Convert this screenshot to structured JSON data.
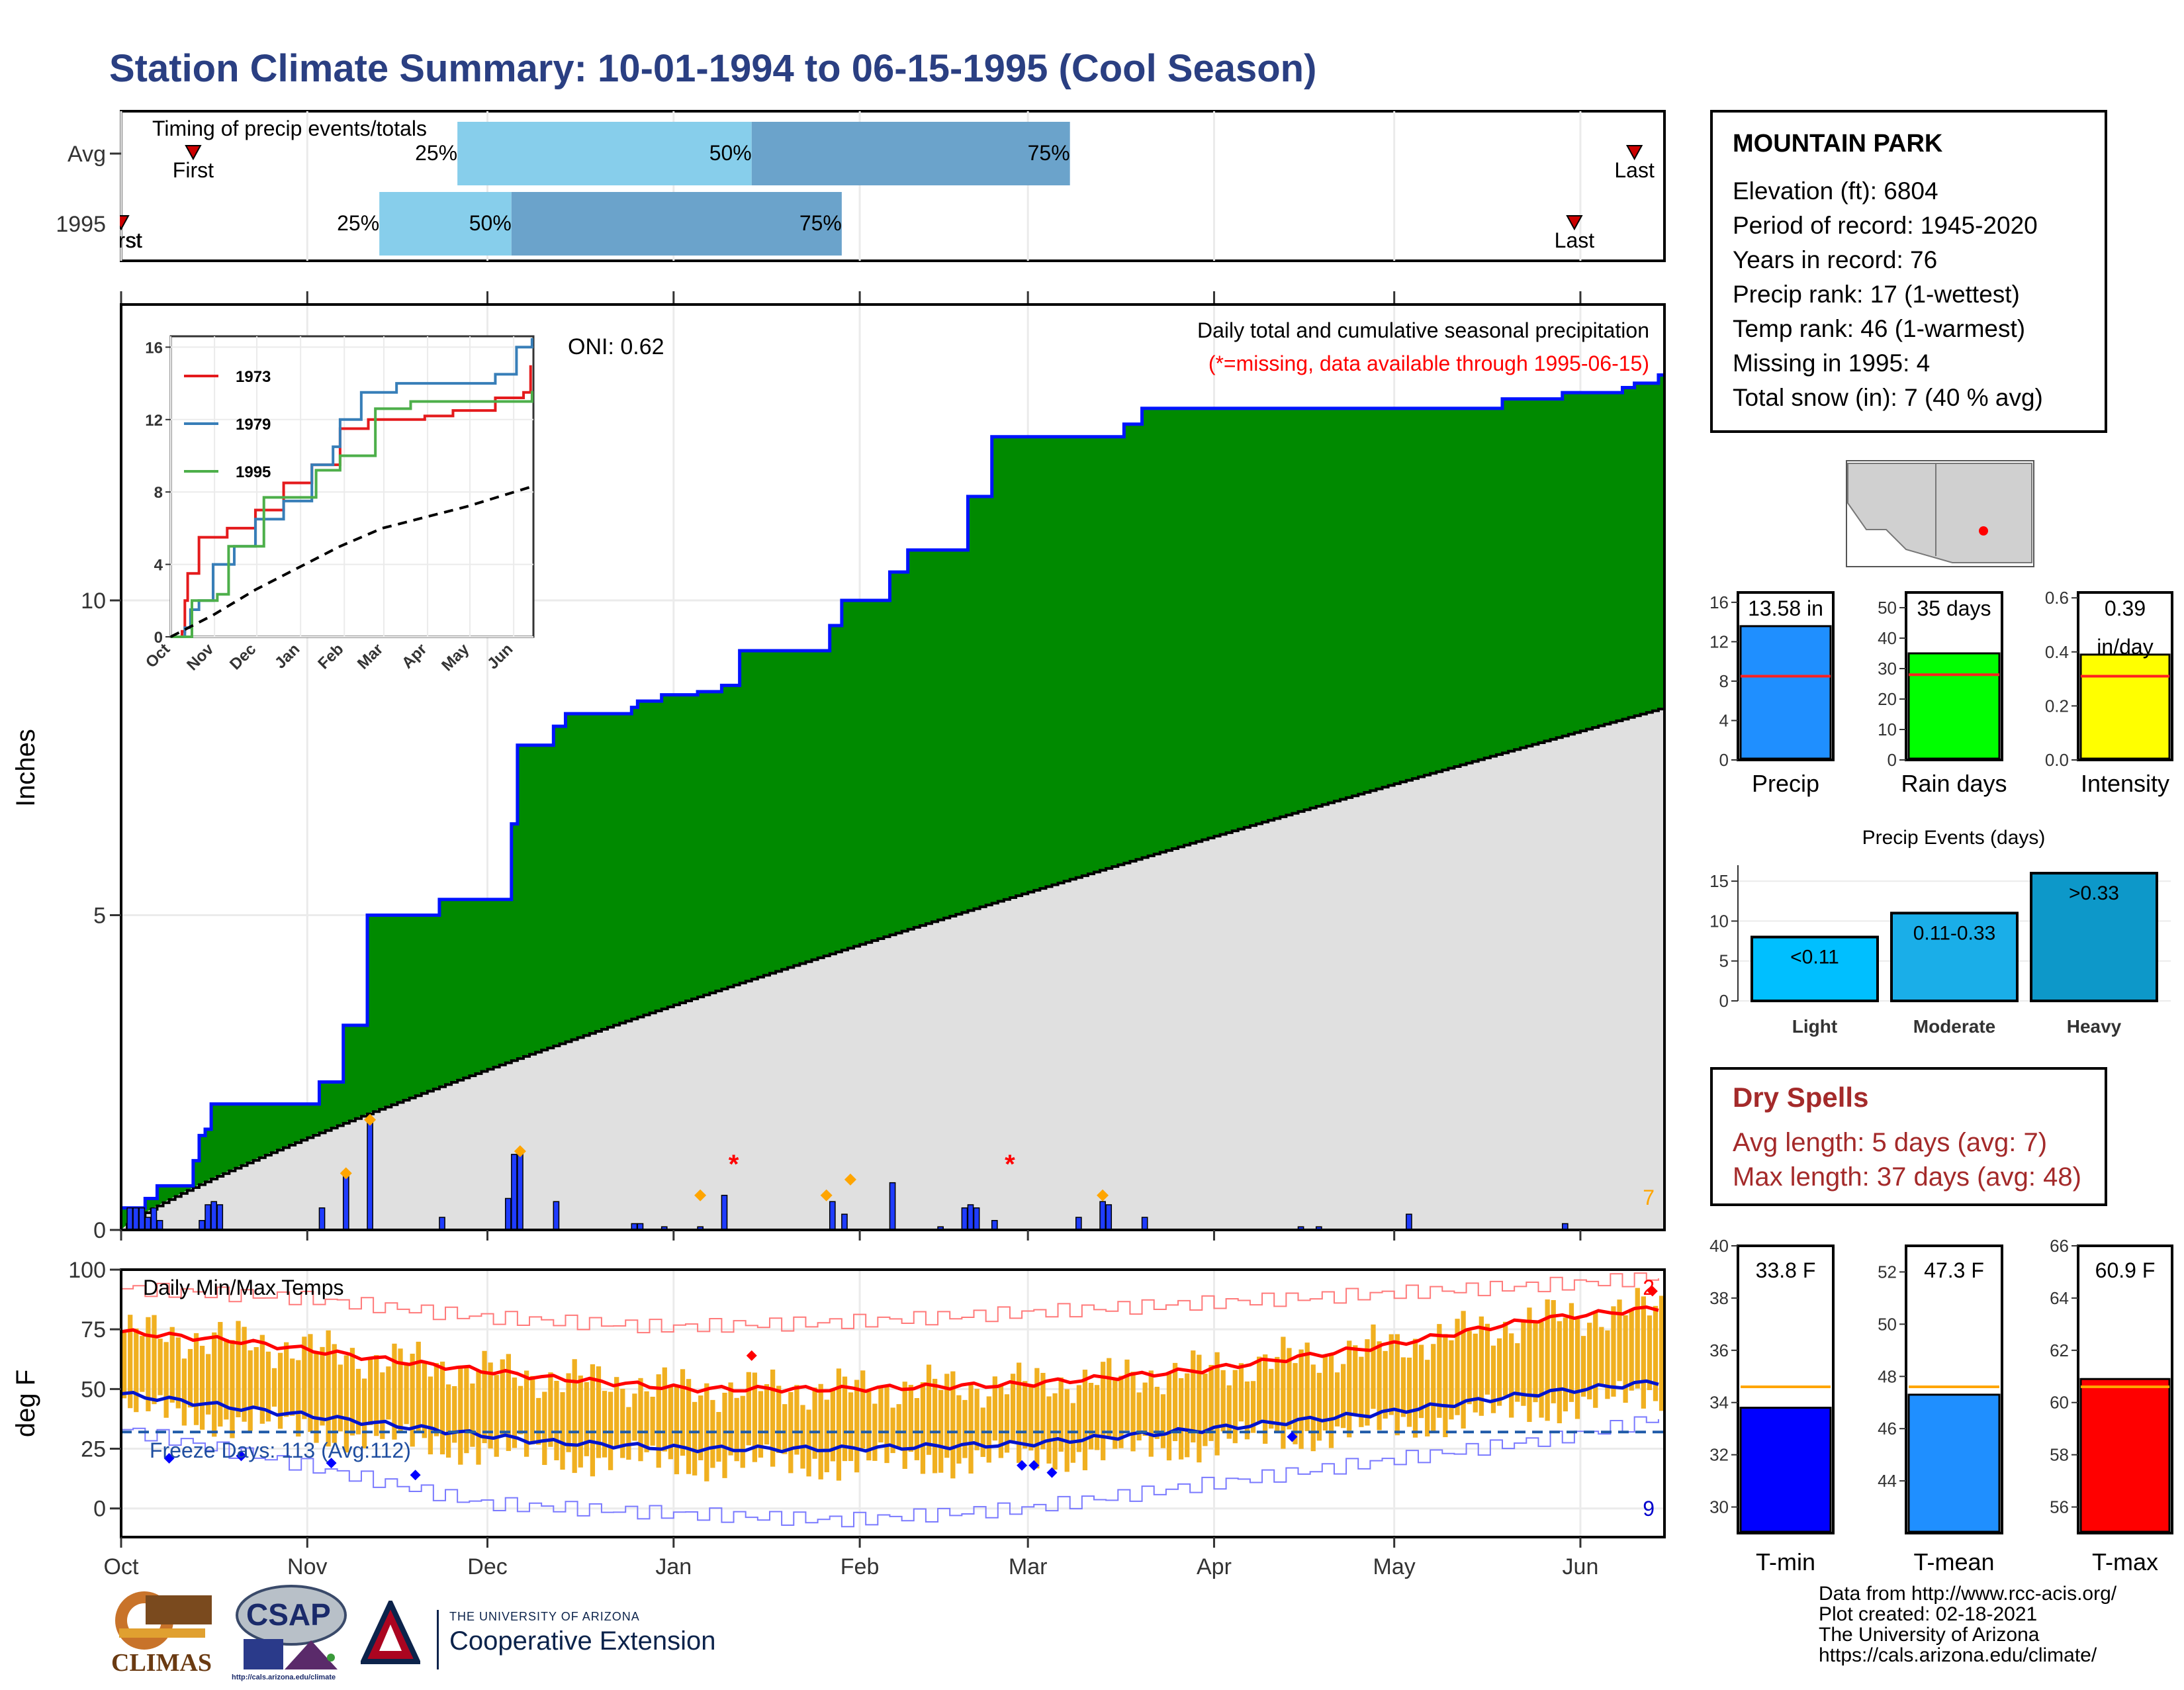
{
  "title": "Station Climate Summary: 10-01-1994 to 06-15-1995 (Cool Season)",
  "colors": {
    "title": "#2a3f82",
    "green": "#008a00",
    "envelope": "#0014ff",
    "normal_fill": "#e0e0e0",
    "bars": "#1f3cff",
    "orange": "#ffa500",
    "tmax": "#ff0000",
    "tmin": "#0014cc",
    "tband": "#f0b020",
    "dry": "#a42a2a"
  },
  "timing": {
    "title": "Timing of precip events/totals",
    "rows": [
      {
        "label": "Avg",
        "first_label": "First",
        "last_label": "Last",
        "first_day": 12,
        "last_day": 252,
        "p25_day": 56,
        "p50_day": 105,
        "p75_day": 158,
        "p25_label": "25%",
        "p50_label": "50%",
        "p75_label": "75%"
      },
      {
        "label": "1995",
        "first_label": "First",
        "last_label": "Last",
        "first_day": 0,
        "last_day": 242,
        "p25_day": 43,
        "p50_day": 65,
        "p75_day": 120,
        "p25_label": "25%",
        "p50_label": "50%",
        "p75_label": "75%"
      }
    ]
  },
  "precip_panel": {
    "ylabel": "Inches",
    "oni": "ONI: 0.62",
    "caption": "Daily total and cumulative seasonal precipitation",
    "missing_note": "(*=missing, data available through 1995-06-15)",
    "snow_count": "7",
    "y_ticks": [
      "0",
      "5",
      "10"
    ],
    "ylim": [
      0,
      14.7
    ],
    "cumulative_steps": [
      [
        0,
        0.35
      ],
      [
        4,
        0.5
      ],
      [
        6,
        0.7
      ],
      [
        12,
        1.1
      ],
      [
        13,
        1.5
      ],
      [
        14,
        1.6
      ],
      [
        15,
        2.0
      ],
      [
        33,
        2.35
      ],
      [
        37,
        3.25
      ],
      [
        41,
        5.0
      ],
      [
        53,
        5.25
      ],
      [
        64,
        5.25
      ],
      [
        65,
        6.45
      ],
      [
        66,
        7.7
      ],
      [
        72,
        8.0
      ],
      [
        74,
        8.2
      ],
      [
        85,
        8.3
      ],
      [
        86,
        8.4
      ],
      [
        90,
        8.5
      ],
      [
        96,
        8.55
      ],
      [
        100,
        8.65
      ],
      [
        103,
        9.2
      ],
      [
        118,
        9.6
      ],
      [
        120,
        10.0
      ],
      [
        128,
        10.45
      ],
      [
        131,
        10.8
      ],
      [
        136,
        10.8
      ],
      [
        141,
        11.65
      ],
      [
        145,
        12.6
      ],
      [
        158,
        12.6
      ],
      [
        159,
        12.6
      ],
      [
        163,
        12.6
      ],
      [
        164,
        12.6
      ],
      [
        167,
        12.8
      ],
      [
        170,
        13.05
      ],
      [
        188,
        13.05
      ],
      [
        195,
        13.05
      ],
      [
        214,
        13.05
      ],
      [
        218,
        13.05
      ],
      [
        230,
        13.2
      ],
      [
        240,
        13.3
      ],
      [
        246,
        13.3
      ],
      [
        249,
        13.3
      ],
      [
        250,
        13.38
      ],
      [
        252,
        13.45
      ],
      [
        256,
        13.58
      ]
    ],
    "normal_end": 8.3,
    "daily_bars": [
      [
        1,
        0.35
      ],
      [
        2,
        0.35
      ],
      [
        3,
        0.35
      ],
      [
        4,
        0.2
      ],
      [
        5,
        0.35
      ],
      [
        6,
        0.15
      ],
      [
        13,
        0.15
      ],
      [
        14,
        0.4
      ],
      [
        15,
        0.45
      ],
      [
        16,
        0.4
      ],
      [
        33,
        0.35
      ],
      [
        37,
        0.9
      ],
      [
        41,
        1.75
      ],
      [
        53,
        0.2
      ],
      [
        64,
        0.5
      ],
      [
        65,
        1.2
      ],
      [
        66,
        1.25
      ],
      [
        72,
        0.45
      ],
      [
        85,
        0.1
      ],
      [
        86,
        0.1
      ],
      [
        90,
        0.05
      ],
      [
        96,
        0.05
      ],
      [
        100,
        0.55
      ],
      [
        118,
        0.45
      ],
      [
        120,
        0.25
      ],
      [
        128,
        0.75
      ],
      [
        136,
        0.05
      ],
      [
        140,
        0.35
      ],
      [
        141,
        0.4
      ],
      [
        142,
        0.35
      ],
      [
        145,
        0.15
      ],
      [
        159,
        0.2
      ],
      [
        163,
        0.45
      ],
      [
        164,
        0.4
      ],
      [
        170,
        0.2
      ],
      [
        196,
        0.05
      ],
      [
        199,
        0.05
      ],
      [
        214,
        0.25
      ],
      [
        240,
        0.1
      ]
    ],
    "orange_marks": [
      [
        37,
        0.9
      ],
      [
        41,
        1.75
      ],
      [
        66,
        1.25
      ],
      [
        96,
        0.55
      ],
      [
        117,
        0.55
      ],
      [
        121,
        0.8
      ],
      [
        163,
        0.55
      ]
    ],
    "missing_marks": [
      [
        102,
        1.05
      ],
      [
        148,
        1.05
      ]
    ]
  },
  "inset": {
    "y_ticks": [
      "0",
      "4",
      "8",
      "12",
      "16"
    ],
    "x_labels": [
      "Oct",
      "Nov",
      "Dec",
      "Jan",
      "Feb",
      "Mar",
      "Apr",
      "May",
      "Jun"
    ],
    "legend": [
      {
        "name": "1973",
        "color": "#e41a1c"
      },
      {
        "name": "1979",
        "color": "#377eb8"
      },
      {
        "name": "1995",
        "color": "#4daf4a"
      }
    ],
    "series_1973": [
      [
        0,
        0
      ],
      [
        8,
        0.3
      ],
      [
        10,
        2
      ],
      [
        12,
        3.5
      ],
      [
        16,
        3.5
      ],
      [
        20,
        5.5
      ],
      [
        40,
        6
      ],
      [
        60,
        7
      ],
      [
        80,
        8.5
      ],
      [
        100,
        9.5
      ],
      [
        120,
        11.5
      ],
      [
        140,
        12
      ],
      [
        160,
        12
      ],
      [
        180,
        12.2
      ],
      [
        200,
        12.5
      ],
      [
        230,
        13.2
      ],
      [
        250,
        13.5
      ],
      [
        255,
        15
      ]
    ],
    "series_1979": [
      [
        0,
        0
      ],
      [
        10,
        0.5
      ],
      [
        14,
        1.5
      ],
      [
        20,
        2
      ],
      [
        30,
        4
      ],
      [
        45,
        5
      ],
      [
        60,
        6.5
      ],
      [
        80,
        7.5
      ],
      [
        100,
        9.5
      ],
      [
        115,
        10.5
      ],
      [
        120,
        12
      ],
      [
        135,
        13.5
      ],
      [
        160,
        14
      ],
      [
        200,
        14
      ],
      [
        230,
        14.5
      ],
      [
        245,
        16
      ],
      [
        256,
        16.5
      ]
    ],
    "series_1995": [
      [
        0,
        0
      ],
      [
        15,
        2
      ],
      [
        33,
        2.35
      ],
      [
        41,
        5
      ],
      [
        66,
        7.7
      ],
      [
        103,
        9.2
      ],
      [
        120,
        10
      ],
      [
        145,
        12.6
      ],
      [
        170,
        13
      ],
      [
        256,
        13.58
      ]
    ],
    "series_normal": [
      [
        0,
        0
      ],
      [
        30,
        1.2
      ],
      [
        60,
        2.6
      ],
      [
        90,
        3.8
      ],
      [
        120,
        5
      ],
      [
        150,
        6
      ],
      [
        180,
        6.6
      ],
      [
        210,
        7.2
      ],
      [
        256,
        8.3
      ]
    ]
  },
  "temp_panel": {
    "ylabel": "deg F",
    "title": "Daily Min/Max Temps",
    "freeze_label": "Freeze Days: 113 (Avg:112)",
    "max_count": "2",
    "min_count": "9",
    "y_ticks": [
      "0",
      "25",
      "50",
      "75",
      "100"
    ],
    "ylim": [
      -12,
      100
    ],
    "freeze_line": 32,
    "normal_max": [
      [
        0,
        74
      ],
      [
        20,
        70
      ],
      [
        45,
        62
      ],
      [
        70,
        55
      ],
      [
        95,
        50
      ],
      [
        120,
        50
      ],
      [
        150,
        52
      ],
      [
        180,
        58
      ],
      [
        210,
        68
      ],
      [
        235,
        79
      ],
      [
        256,
        84
      ]
    ],
    "normal_min": [
      [
        0,
        48
      ],
      [
        20,
        42
      ],
      [
        45,
        35
      ],
      [
        70,
        28
      ],
      [
        95,
        25
      ],
      [
        120,
        25
      ],
      [
        150,
        27
      ],
      [
        180,
        33
      ],
      [
        210,
        40
      ],
      [
        235,
        48
      ],
      [
        256,
        53
      ]
    ],
    "record_max": [
      [
        0,
        92
      ],
      [
        30,
        88
      ],
      [
        60,
        80
      ],
      [
        90,
        76
      ],
      [
        120,
        78
      ],
      [
        150,
        82
      ],
      [
        180,
        86
      ],
      [
        210,
        90
      ],
      [
        240,
        94
      ],
      [
        256,
        97
      ]
    ],
    "record_min": [
      [
        0,
        33
      ],
      [
        30,
        18
      ],
      [
        60,
        2
      ],
      [
        90,
        -2
      ],
      [
        120,
        -5
      ],
      [
        150,
        0
      ],
      [
        180,
        10
      ],
      [
        210,
        20
      ],
      [
        240,
        30
      ],
      [
        256,
        38
      ]
    ],
    "record_marks": [
      [
        105,
        64
      ],
      [
        255,
        91
      ]
    ],
    "freeze_marks": [
      [
        8,
        21
      ],
      [
        20,
        22
      ],
      [
        35,
        19
      ],
      [
        49,
        14
      ],
      [
        150,
        18
      ],
      [
        152,
        18
      ],
      [
        155,
        15
      ],
      [
        195,
        30
      ]
    ]
  },
  "x_months": [
    "Oct",
    "Nov",
    "Dec",
    "Jan",
    "Feb",
    "Mar",
    "Apr",
    "May",
    "Jun"
  ],
  "x_month_days": [
    0,
    31,
    61,
    92,
    123,
    151,
    182,
    212,
    243
  ],
  "station": {
    "name": "MOUNTAIN PARK",
    "elevation": "Elevation (ft): 6804",
    "period": "Period of record: 1945-2020",
    "years": "Years in record: 76",
    "precip_rank": "Precip rank: 17 (1-wettest)",
    "temp_rank": "Temp rank: 46 (1-warmest)",
    "missing": "Missing in 1995: 4",
    "snow": "Total snow (in): 7 (40 % avg)"
  },
  "mini_bars": [
    {
      "label": "Precip",
      "value_text": "13.58 in",
      "value": 13.58,
      "avg": 8.5,
      "ymax": 17,
      "ticks": [
        "0",
        "4",
        "8",
        "12",
        "16"
      ],
      "color": "#1f8fff"
    },
    {
      "label": "Rain days",
      "value_text": "35 days",
      "value": 35,
      "avg": 28,
      "ymax": 55,
      "ticks": [
        "0",
        "10",
        "20",
        "30",
        "40",
        "50"
      ],
      "color": "#00ff00"
    },
    {
      "label": "Intensity",
      "value_text": "0.39",
      "value_text2": "in/day",
      "value": 0.39,
      "avg": 0.31,
      "ymax": 0.62,
      "ticks": [
        "0.0",
        "0.2",
        "0.4",
        "0.6"
      ],
      "color": "#ffff00"
    }
  ],
  "events": {
    "title": "Precip Events (days)",
    "ymax": 17,
    "y_ticks": [
      "0",
      "5",
      "10",
      "15"
    ],
    "bars": [
      {
        "label": "Light",
        "range": "<0.11",
        "value": 8,
        "color": "#00bfff"
      },
      {
        "label": "Moderate",
        "range": "0.11-0.33",
        "value": 11,
        "color": "#1aaee8"
      },
      {
        "label": "Heavy",
        "range": ">0.33",
        "value": 16,
        "color": "#0d98c9"
      }
    ]
  },
  "dry_spells": {
    "title": "Dry Spells",
    "avg": "Avg length: 5 days (avg: 7)",
    "max": "Max length: 37 days (avg: 48)"
  },
  "temp_bars": [
    {
      "label": "T-min",
      "value_text": "33.8 F",
      "value": 33.8,
      "avg": 34.6,
      "ymin": 29,
      "ymax": 40,
      "ticks": [
        "30",
        "32",
        "34",
        "36",
        "38",
        "40"
      ],
      "color": "#0000ff"
    },
    {
      "label": "T-mean",
      "value_text": "47.3 F",
      "value": 47.3,
      "avg": 47.6,
      "ymin": 42,
      "ymax": 53,
      "ticks": [
        "44",
        "46",
        "48",
        "50",
        "52"
      ],
      "color": "#1f8fff"
    },
    {
      "label": "T-max",
      "value_text": "60.9 F",
      "value": 60.9,
      "avg": 60.6,
      "ymin": 55,
      "ymax": 66,
      "ticks": [
        "56",
        "58",
        "60",
        "62",
        "64",
        "66"
      ],
      "color": "#ff0000"
    }
  ],
  "credits": [
    "Data from http://www.rcc-acis.org/",
    "Plot created: 02-18-2021",
    "The University of Arizona",
    "https://cals.arizona.edu/climate/"
  ],
  "logos": {
    "climas": "CLIMAS",
    "csap": "CSAP",
    "csap_url": "http://cals.arizona.edu/climate",
    "ua_small": "THE UNIVERSITY OF ARIZONA",
    "ua_big": "Cooperative Extension"
  }
}
